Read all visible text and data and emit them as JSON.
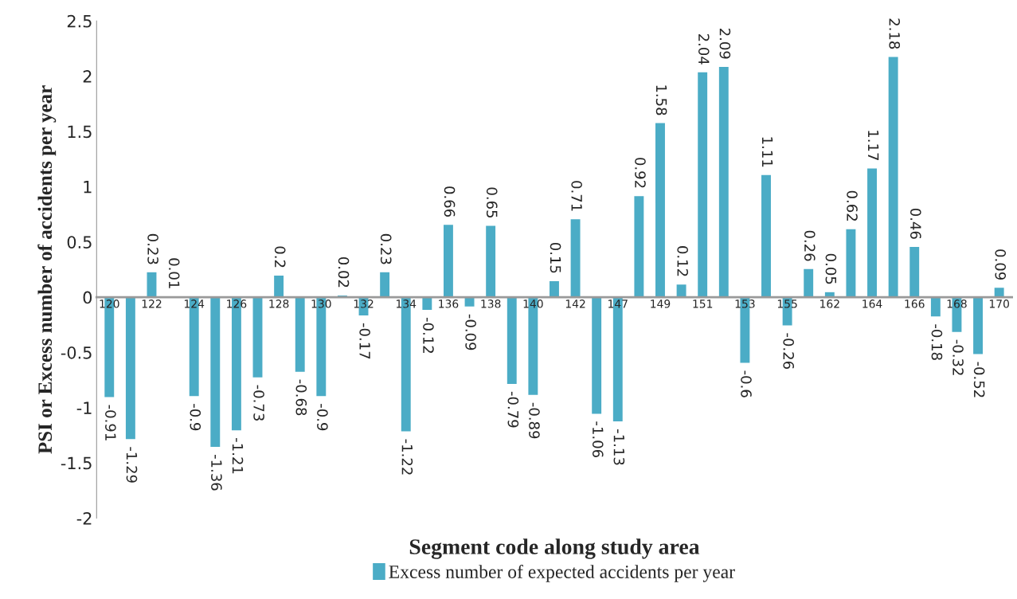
{
  "chart_data": {
    "type": "bar",
    "xlabel": "Segment code along study area",
    "ylabel": "PSI or Excess number of accidents per year",
    "categories": [
      "120",
      null,
      "122",
      null,
      "124",
      null,
      "126",
      null,
      "128",
      null,
      "130",
      null,
      "132",
      null,
      "134",
      null,
      "136",
      null,
      "138",
      null,
      "140",
      null,
      "142",
      null,
      "147",
      null,
      "149",
      null,
      "151",
      null,
      "153",
      null,
      "155",
      null,
      "162",
      null,
      "164",
      null,
      "166",
      null,
      "168",
      null,
      "170"
    ],
    "series": [
      {
        "name": "Excess number of expected accidents per year",
        "color": "#4bacc6",
        "values": [
          -0.91,
          -1.29,
          0.23,
          0.01,
          -0.9,
          -1.36,
          -1.21,
          -0.73,
          0.2,
          -0.68,
          -0.9,
          0.02,
          -0.17,
          0.23,
          -1.22,
          -0.12,
          0.66,
          -0.09,
          0.65,
          -0.79,
          -0.89,
          0.15,
          0.71,
          -1.06,
          -1.13,
          0.92,
          1.58,
          0.12,
          2.04,
          2.09,
          -0.6,
          1.11,
          -0.26,
          0.26,
          0.05,
          0.62,
          1.17,
          2.18,
          0.46,
          -0.18,
          -0.32,
          -0.52,
          0.09
        ]
      }
    ],
    "ylim": [
      -2,
      2.5
    ],
    "yticks": [
      -2,
      -1.5,
      -1,
      -0.5,
      0,
      0.5,
      1,
      1.5,
      2,
      2.5
    ],
    "data_labels": true,
    "grid": false,
    "legend": "bottom"
  }
}
